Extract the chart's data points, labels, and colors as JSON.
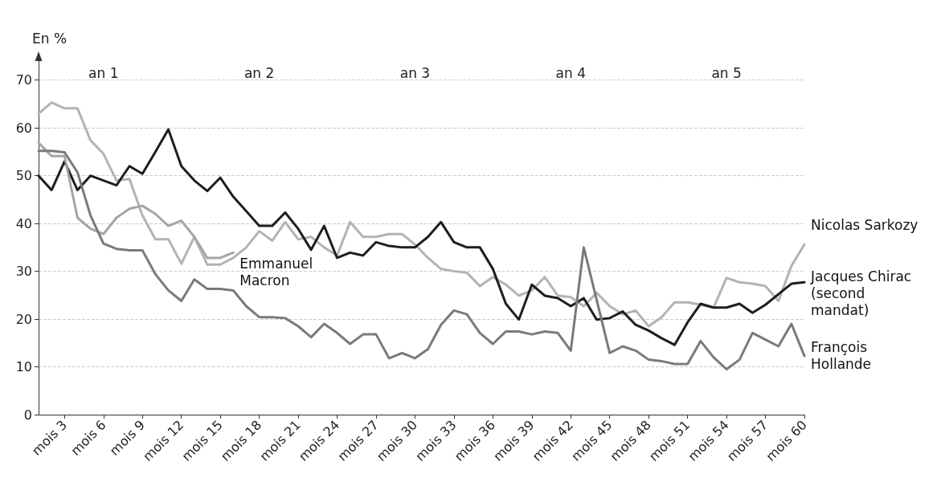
{
  "chart_data": {
    "type": "line",
    "ylabel": "En %",
    "categories": [
      null,
      null,
      "mois 3",
      null,
      null,
      "mois 6",
      null,
      null,
      "mois 9",
      null,
      null,
      "mois 12",
      null,
      null,
      "mois 15",
      null,
      null,
      "mois 18",
      null,
      null,
      "mois 21",
      null,
      null,
      "mois 24",
      null,
      null,
      "mois 27",
      null,
      null,
      "mois 30",
      null,
      null,
      "mois 33",
      null,
      null,
      "mois 36",
      null,
      null,
      "mois 39",
      null,
      null,
      "mois 42",
      null,
      null,
      "mois 45",
      null,
      null,
      "mois 48",
      null,
      null,
      "mois 51",
      null,
      null,
      "mois 54",
      null,
      null,
      "mois 57",
      null,
      null,
      "mois 60"
    ],
    "series": [
      {
        "name": "Nicolas Sarkozy",
        "color": "#b3b3b3",
        "values": [
          63,
          65.3,
          64.1,
          64.1,
          57.4,
          54.6,
          49,
          49.3,
          41.7,
          36.7,
          36.7,
          31.6,
          37.2,
          31.4,
          31.4,
          32.8,
          35,
          38.4,
          36.4,
          40.3,
          36.7,
          37.2,
          35,
          33.3,
          40.3,
          37.2,
          37.2,
          37.8,
          37.8,
          35.6,
          32.8,
          30.5,
          30,
          29.7,
          26.9,
          28.8,
          27.2,
          24.9,
          26,
          28.8,
          24.9,
          24.6,
          22.7,
          25.5,
          22.7,
          21,
          21.8,
          18.5,
          20.4,
          23.5,
          23.5,
          23,
          22.4,
          28.6,
          27.7,
          27.4,
          26.9,
          23.8,
          31.1,
          35.6
        ]
      },
      {
        "name": "Jacques Chirac (second mandat)",
        "color": "#1e1e1e",
        "values": [
          50,
          47,
          53,
          47,
          50,
          49,
          48,
          52,
          50.4,
          55,
          59.7,
          52,
          49,
          46.8,
          49.6,
          45.6,
          42.6,
          39.5,
          39.5,
          42.3,
          38.9,
          34.5,
          39.5,
          32.8,
          33.9,
          33.3,
          36.1,
          35.3,
          35,
          35,
          37.2,
          40.3,
          36.1,
          35,
          35,
          30.5,
          23.2,
          19.9,
          27.2,
          24.9,
          24.4,
          22.7,
          24.4,
          19.9,
          20.2,
          21.6,
          18.8,
          17.6,
          16,
          14.6,
          19.3,
          23.2,
          22.4,
          22.4,
          23.2,
          21.3,
          23,
          25.2,
          27.4,
          27.7
        ]
      },
      {
        "name": "Emmanuel Macron",
        "color": "#a5a5a5",
        "values": [
          56.9,
          54.1,
          54.1,
          41.2,
          38.9,
          37.8,
          41.2,
          43.1,
          43.7,
          42,
          39.5,
          40.6,
          37.2,
          32.8,
          32.8,
          33.9,
          null,
          null,
          null,
          null,
          null,
          null,
          null,
          null,
          null,
          null,
          null,
          null,
          null,
          null,
          null,
          null,
          null,
          null,
          null,
          null,
          null,
          null,
          null,
          null,
          null,
          null,
          null,
          null,
          null,
          null,
          null,
          null,
          null,
          null,
          null,
          null,
          null,
          null,
          null,
          null,
          null,
          null,
          null,
          null
        ]
      },
      {
        "name": "François Hollande",
        "color": "#7a7a7a",
        "values": [
          55.2,
          55.2,
          54.9,
          50.7,
          41.7,
          35.8,
          34.7,
          34.4,
          34.4,
          29.4,
          26,
          23.8,
          28.3,
          26.3,
          26.3,
          26,
          22.7,
          20.4,
          20.4,
          20.2,
          18.5,
          16.2,
          19,
          17.1,
          14.8,
          16.8,
          16.8,
          11.8,
          12.9,
          11.8,
          13.7,
          18.8,
          21.8,
          21,
          17.1,
          14.8,
          17.4,
          17.4,
          16.8,
          17.4,
          17.1,
          13.4,
          35,
          24,
          12.9,
          14.3,
          13.4,
          11.5,
          11.2,
          10.6,
          10.6,
          15.4,
          12,
          9.5,
          11.5,
          17.1,
          15.7,
          14.3,
          19,
          12.3
        ]
      }
    ],
    "ylim": [
      0,
      75
    ],
    "yticks": [
      0,
      10,
      20,
      30,
      40,
      50,
      60,
      70
    ],
    "annotations": [
      "an 1",
      "an 2",
      "an 3",
      "an 4",
      "an 5"
    ],
    "grid": "y",
    "legend": false,
    "marker": "none",
    "line_style": "solid"
  }
}
